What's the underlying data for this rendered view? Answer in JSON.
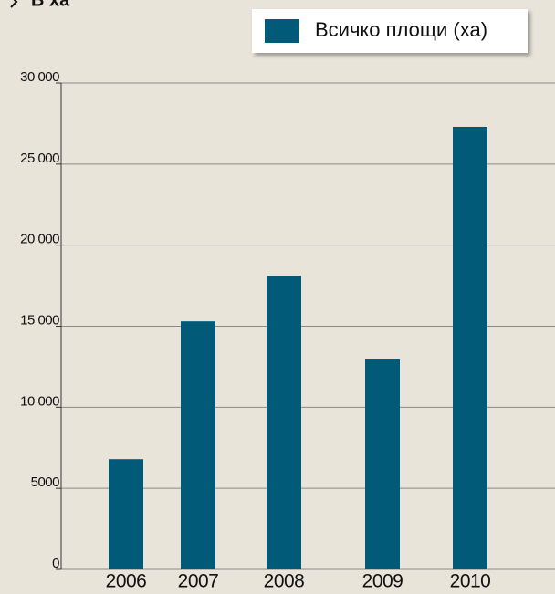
{
  "chart_data": {
    "type": "bar",
    "subtitle": "В ха",
    "categories": [
      "2006",
      "2007",
      "2008",
      "2009",
      "2010"
    ],
    "series": [
      {
        "name": "Всичко площи (ха)",
        "color": "#005a78",
        "values": [
          6800,
          15300,
          18100,
          13000,
          27300
        ]
      }
    ],
    "ylim": [
      0,
      30000
    ],
    "yticks": [
      0,
      5000,
      {
        "value": 10000,
        "label": "10 000"
      },
      {
        "value": 15000,
        "label": "15 000"
      },
      {
        "value": 20000,
        "label": "20 000"
      },
      {
        "value": 25000,
        "label": "25 000"
      },
      {
        "value": 30000,
        "label": "30 000"
      }
    ],
    "grid": true,
    "legend": "top-right"
  }
}
